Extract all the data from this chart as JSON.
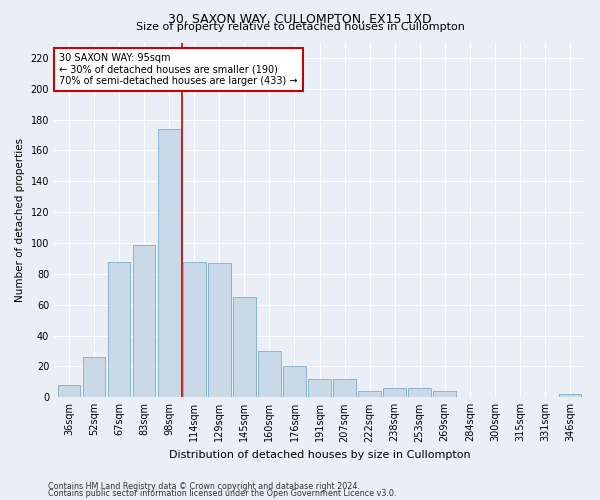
{
  "title": "30, SAXON WAY, CULLOMPTON, EX15 1XD",
  "subtitle": "Size of property relative to detached houses in Cullompton",
  "xlabel": "Distribution of detached houses by size in Cullompton",
  "ylabel": "Number of detached properties",
  "categories": [
    "36sqm",
    "52sqm",
    "67sqm",
    "83sqm",
    "98sqm",
    "114sqm",
    "129sqm",
    "145sqm",
    "160sqm",
    "176sqm",
    "191sqm",
    "207sqm",
    "222sqm",
    "238sqm",
    "253sqm",
    "269sqm",
    "284sqm",
    "300sqm",
    "315sqm",
    "331sqm",
    "346sqm"
  ],
  "values": [
    8,
    26,
    88,
    99,
    174,
    88,
    87,
    65,
    30,
    20,
    12,
    12,
    4,
    6,
    6,
    4,
    0,
    0,
    0,
    0,
    2
  ],
  "bar_color": "#c9d9e8",
  "bar_edge_color": "#8ab4cc",
  "property_line_label": "30 SAXON WAY: 95sqm",
  "annotation_line1": "← 30% of detached houses are smaller (190)",
  "annotation_line2": "70% of semi-detached houses are larger (433) →",
  "annotation_box_color": "#ffffff",
  "annotation_box_edge": "#cc0000",
  "vline_color": "#cc0000",
  "ylim": [
    0,
    230
  ],
  "yticks": [
    0,
    20,
    40,
    60,
    80,
    100,
    120,
    140,
    160,
    180,
    200,
    220
  ],
  "footnote1": "Contains HM Land Registry data © Crown copyright and database right 2024.",
  "footnote2": "Contains public sector information licensed under the Open Government Licence v3.0.",
  "bg_color": "#eaeff7",
  "plot_bg_color": "#eaeff7",
  "title_fontsize": 9,
  "subtitle_fontsize": 8,
  "axis_label_fontsize": 7.5,
  "tick_fontsize": 7,
  "annotation_fontsize": 7,
  "footnote_fontsize": 5.8
}
